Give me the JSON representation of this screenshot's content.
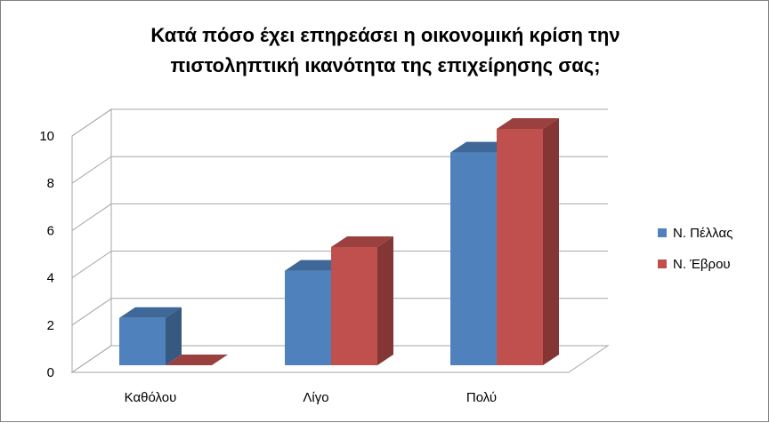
{
  "chart_data": {
    "type": "bar",
    "title": [
      "Κατά πόσο έχει επηρεάσει η οικονομική κρίση την",
      "πιστοληπτική ικανότητα  της επιχείρησης σας;"
    ],
    "categories": [
      "Καθόλου",
      "Λίγο",
      "Πολύ"
    ],
    "series": [
      {
        "name": "Ν. Πέλλας",
        "values": [
          2,
          4,
          9
        ],
        "color": "#4f81bd"
      },
      {
        "name": "Ν. Έβρου",
        "values": [
          0,
          5,
          10
        ],
        "color": "#c0504d"
      }
    ],
    "y_ticks": [
      0,
      2,
      4,
      6,
      8,
      10
    ],
    "ylim": [
      0,
      10
    ],
    "grid": true,
    "legend": "right",
    "three_d": true
  }
}
